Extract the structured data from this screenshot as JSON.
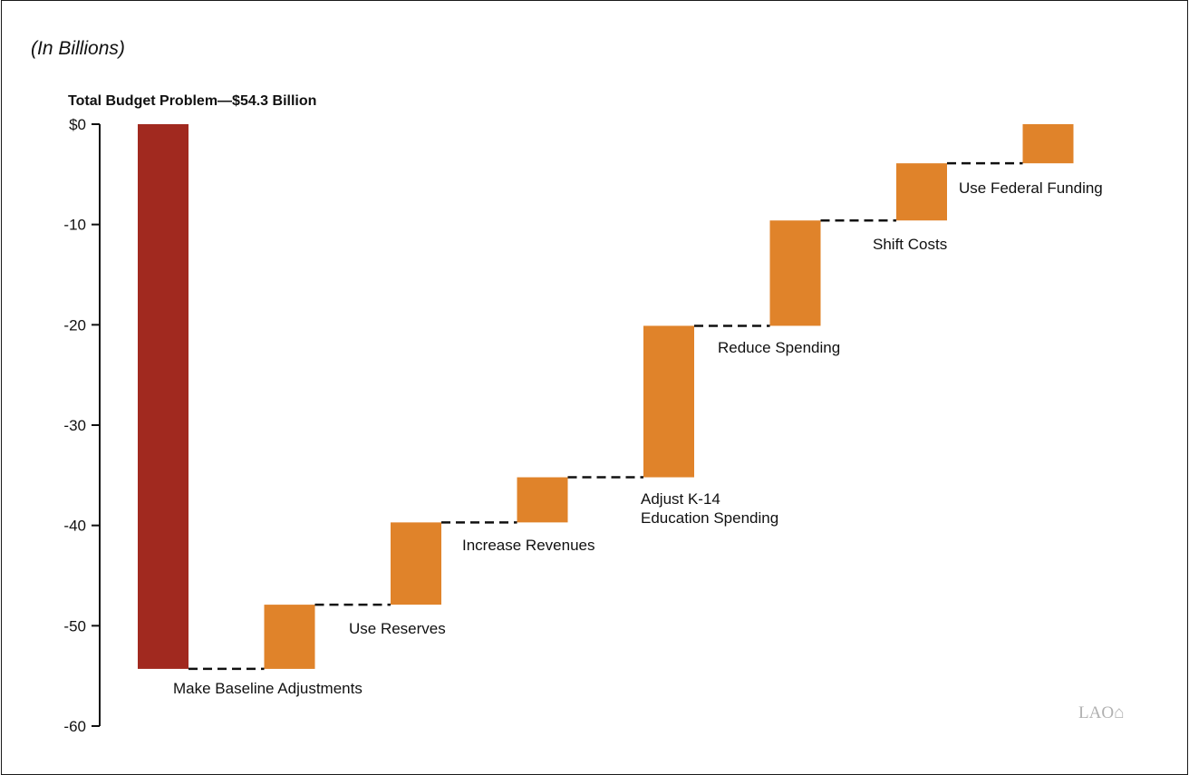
{
  "unit_note": "(In Billions)",
  "logo_text": "LAO",
  "chart_data": {
    "type": "bar",
    "subtype": "waterfall",
    "annotation": "Total Budget Problem—$54.3 Billion",
    "title": "",
    "xlabel": "",
    "ylabel": "",
    "ylim": [
      -60,
      0
    ],
    "yticks": [
      0,
      -10,
      -20,
      -30,
      -40,
      -50,
      -60
    ],
    "ytick_labels": [
      "$0",
      "-10",
      "-20",
      "-30",
      "-40",
      "-50",
      "-60"
    ],
    "grid": false,
    "legend": "none",
    "total": {
      "value": -54.3,
      "color": "#a1291f"
    },
    "categories": [
      "Make Baseline Adjustments",
      "Use Reserves",
      "Increase Revenues",
      "Adjust K-14 Education Spending",
      "Reduce Spending",
      "Shift Costs",
      "Use Federal Funding"
    ],
    "category_lines": [
      [
        "Make Baseline Adjustments"
      ],
      [
        "Use Reserves"
      ],
      [
        "Increase Revenues"
      ],
      [
        "Adjust K-14",
        "Education Spending"
      ],
      [
        "Reduce Spending"
      ],
      [
        "Shift Costs"
      ],
      [
        "Use Federal Funding"
      ]
    ],
    "segments": [
      {
        "from": -54.3,
        "to": -54.3
      },
      {
        "from": -54.3,
        "to": -47.9
      },
      {
        "from": -47.9,
        "to": -39.7
      },
      {
        "from": -39.7,
        "to": -35.2
      },
      {
        "from": -35.2,
        "to": -20.1
      },
      {
        "from": -20.1,
        "to": -9.6
      },
      {
        "from": -9.6,
        "to": -3.9
      },
      {
        "from": -3.9,
        "to": 0
      }
    ],
    "step_color": "#e0832a"
  }
}
